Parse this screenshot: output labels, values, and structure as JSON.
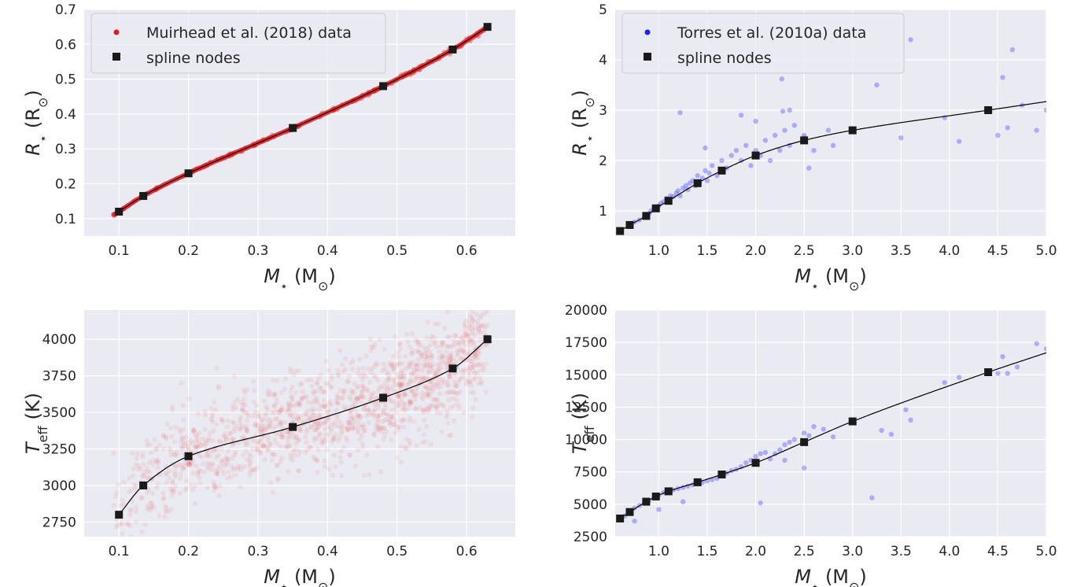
{
  "style": {
    "panel_bg": "#eaeaf2",
    "grid_color": "#ffffff",
    "text_color": "#262626",
    "red": "#e31a1c",
    "blue": "#1f1fff",
    "node_color": "#1a1a1a",
    "curve_color": "#000000"
  },
  "chart_data": [
    {
      "id": "top-left",
      "type": "scatter",
      "xlabel": {
        "main": "M",
        "sub": "⋆",
        "unit": "(M",
        "unit_sub": "⊙",
        "close": ")"
      },
      "ylabel": {
        "main": "R",
        "sub": "⋆",
        "unit": "(R",
        "unit_sub": "⊙",
        "close": ")"
      },
      "xlim": [
        0.05,
        0.67
      ],
      "ylim": [
        0.05,
        0.7
      ],
      "xticks": [
        0.1,
        0.2,
        0.3,
        0.4,
        0.5,
        0.6
      ],
      "xtick_labels": [
        "0.1",
        "0.2",
        "0.3",
        "0.4",
        "0.5",
        "0.6"
      ],
      "yticks": [
        0.1,
        0.2,
        0.3,
        0.4,
        0.5,
        0.6,
        0.7
      ],
      "ytick_labels": [
        "0.1",
        "0.2",
        "0.3",
        "0.4",
        "0.5",
        "0.6",
        "0.7"
      ],
      "legend": {
        "location": "upper-left",
        "items": [
          "Muirhead et al. (2018) data",
          "spline nodes"
        ]
      },
      "data_series": {
        "name": "Muirhead et al. (2018) data",
        "color": "red",
        "kind": "band",
        "x_range": [
          0.09,
          0.63
        ]
      },
      "spline_nodes": {
        "name": "spline nodes",
        "x": [
          0.1,
          0.135,
          0.2,
          0.35,
          0.48,
          0.58,
          0.63
        ],
        "y": [
          0.12,
          0.165,
          0.23,
          0.36,
          0.48,
          0.585,
          0.65
        ]
      }
    },
    {
      "id": "top-right",
      "type": "scatter",
      "xlabel": {
        "main": "M",
        "sub": "⋆",
        "unit": "(M",
        "unit_sub": "⊙",
        "close": ")"
      },
      "ylabel": {
        "main": "R",
        "sub": "⋆",
        "unit": "(R",
        "unit_sub": "⊙",
        "close": ")"
      },
      "xlim": [
        0.55,
        5.0
      ],
      "ylim": [
        0.5,
        5.0
      ],
      "xticks": [
        1.0,
        1.5,
        2.0,
        2.5,
        3.0,
        3.5,
        4.0,
        4.5,
        5.0
      ],
      "xtick_labels": [
        "1.0",
        "1.5",
        "2.0",
        "2.5",
        "3.0",
        "3.5",
        "4.0",
        "4.5",
        "5.0"
      ],
      "yticks": [
        1,
        2,
        3,
        4,
        5
      ],
      "ytick_labels": [
        "1",
        "2",
        "3",
        "4",
        "5"
      ],
      "legend": {
        "location": "upper-left",
        "items": [
          "Torres et al. (2010a) data",
          "spline nodes"
        ]
      },
      "data_series": {
        "name": "Torres et al. (2010a) data",
        "color": "blue",
        "kind": "points",
        "x": [
          0.7,
          0.75,
          0.8,
          0.85,
          0.9,
          0.92,
          0.95,
          0.98,
          1.0,
          1.02,
          1.05,
          1.08,
          1.1,
          1.12,
          1.15,
          1.18,
          1.2,
          1.22,
          1.25,
          1.28,
          1.3,
          1.32,
          1.35,
          1.38,
          1.4,
          1.42,
          1.45,
          1.48,
          1.5,
          1.52,
          1.55,
          1.6,
          1.65,
          1.7,
          1.75,
          1.8,
          1.85,
          1.9,
          1.95,
          2.0,
          2.05,
          2.1,
          2.15,
          2.2,
          2.25,
          2.3,
          2.35,
          2.4,
          2.5,
          2.55,
          2.6,
          2.75,
          2.8,
          3.25,
          3.5,
          3.6,
          3.95,
          4.1,
          4.5,
          4.55,
          4.6,
          4.65,
          4.75,
          4.9,
          5.0,
          1.22,
          1.48,
          1.85,
          2.0,
          2.27,
          2.28,
          2.35,
          2.5
        ],
        "y": [
          0.7,
          0.78,
          0.82,
          0.88,
          0.95,
          1.0,
          1.05,
          1.08,
          1.1,
          1.15,
          1.18,
          1.25,
          1.22,
          1.3,
          1.28,
          1.35,
          1.4,
          1.3,
          1.45,
          1.5,
          1.42,
          1.55,
          1.6,
          1.5,
          1.7,
          1.55,
          1.65,
          1.8,
          1.6,
          1.75,
          1.9,
          1.7,
          2.0,
          1.85,
          2.1,
          2.2,
          2.0,
          2.3,
          1.9,
          2.2,
          2.1,
          2.4,
          2.0,
          2.5,
          2.2,
          2.6,
          2.3,
          2.7,
          2.5,
          1.85,
          2.2,
          2.6,
          2.3,
          3.5,
          2.45,
          4.4,
          2.85,
          2.38,
          2.5,
          3.65,
          2.65,
          4.2,
          3.1,
          2.6,
          3.0,
          2.95,
          2.25,
          2.9,
          2.78,
          3.62,
          2.98,
          3.0,
          2.45
        ]
      },
      "spline_nodes": {
        "name": "spline nodes",
        "x": [
          0.6,
          0.7,
          0.87,
          0.97,
          1.1,
          1.4,
          1.65,
          2.0,
          2.5,
          3.0,
          4.4
        ],
        "y": [
          0.6,
          0.72,
          0.9,
          1.05,
          1.2,
          1.55,
          1.8,
          2.1,
          2.4,
          2.6,
          3.0
        ]
      },
      "curve_extend_to": {
        "x": 5.0,
        "y": 3.17
      }
    },
    {
      "id": "bottom-left",
      "type": "scatter",
      "xlabel": {
        "main": "M",
        "sub": "⋆",
        "unit": "(M",
        "unit_sub": "⊙",
        "close": ")"
      },
      "ylabel": {
        "main": "T",
        "sub": "eff",
        "unit": "(K)",
        "unit_sub": "",
        "close": ""
      },
      "xlim": [
        0.05,
        0.67
      ],
      "ylim": [
        2650,
        4200
      ],
      "xticks": [
        0.1,
        0.2,
        0.3,
        0.4,
        0.5,
        0.6
      ],
      "xtick_labels": [
        "0.1",
        "0.2",
        "0.3",
        "0.4",
        "0.5",
        "0.6"
      ],
      "yticks": [
        2750,
        3000,
        3250,
        3500,
        3750,
        4000
      ],
      "ytick_labels": [
        "2750",
        "3000",
        "3250",
        "3500",
        "3750",
        "4000"
      ],
      "legend": null,
      "data_series": {
        "name": "Muirhead et al. (2018) data",
        "color": "red",
        "kind": "cloud",
        "x_range": [
          0.09,
          0.63
        ],
        "scatter_width_K": 170
      },
      "spline_nodes": {
        "name": "spline nodes",
        "x": [
          0.1,
          0.135,
          0.2,
          0.35,
          0.48,
          0.58,
          0.63
        ],
        "y": [
          2800,
          3000,
          3200,
          3400,
          3600,
          3800,
          4000
        ]
      }
    },
    {
      "id": "bottom-right",
      "type": "scatter",
      "xlabel": {
        "main": "M",
        "sub": "⋆",
        "unit": "(M",
        "unit_sub": "⊙",
        "close": ")"
      },
      "ylabel": {
        "main": "T",
        "sub": "eff",
        "unit": "(K)",
        "unit_sub": "",
        "close": ""
      },
      "xlim": [
        0.55,
        5.0
      ],
      "ylim": [
        2500,
        20000
      ],
      "xticks": [
        1.0,
        1.5,
        2.0,
        2.5,
        3.0,
        3.5,
        4.0,
        4.5,
        5.0
      ],
      "xtick_labels": [
        "1.0",
        "1.5",
        "2.0",
        "2.5",
        "3.0",
        "3.5",
        "4.0",
        "4.5",
        "5.0"
      ],
      "yticks": [
        2500,
        5000,
        7500,
        10000,
        12500,
        15000,
        17500,
        20000
      ],
      "ytick_labels": [
        "2500",
        "5000",
        "7500",
        "10000",
        "12500",
        "15000",
        "17500",
        "20000"
      ],
      "legend": null,
      "data_series": {
        "name": "Torres et al. (2010a) data",
        "color": "blue",
        "kind": "points",
        "x": [
          0.65,
          0.7,
          0.75,
          0.8,
          0.85,
          0.9,
          0.95,
          1.0,
          1.05,
          1.1,
          1.15,
          1.2,
          1.25,
          1.3,
          1.35,
          1.4,
          1.45,
          1.5,
          1.55,
          1.6,
          1.65,
          1.7,
          1.75,
          1.8,
          1.85,
          1.9,
          1.95,
          2.0,
          2.05,
          2.1,
          2.15,
          2.2,
          2.25,
          2.3,
          2.35,
          2.4,
          2.5,
          2.55,
          2.6,
          2.7,
          2.8,
          3.2,
          3.3,
          3.4,
          3.55,
          3.6,
          3.95,
          4.1,
          4.5,
          4.55,
          4.6,
          4.7,
          4.9,
          5.0,
          0.75,
          1.0,
          1.25,
          2.05,
          2.3,
          2.5
        ],
        "y": [
          4100,
          4300,
          4700,
          4900,
          5100,
          5300,
          5500,
          5700,
          5900,
          6000,
          6100,
          6200,
          6300,
          6400,
          6500,
          6600,
          6700,
          6800,
          6900,
          7000,
          7200,
          7400,
          7600,
          7700,
          7900,
          8200,
          8400,
          8700,
          8900,
          9000,
          8500,
          8900,
          9200,
          9600,
          9800,
          10000,
          10500,
          10300,
          11000,
          10800,
          10200,
          5500,
          10700,
          10400,
          12300,
          11500,
          14400,
          14800,
          15100,
          16400,
          15100,
          15600,
          17400,
          17000,
          3700,
          4600,
          5200,
          5100,
          8400,
          7800
        ]
      },
      "spline_nodes": {
        "name": "spline nodes",
        "x": [
          0.6,
          0.7,
          0.87,
          0.97,
          1.1,
          1.4,
          1.65,
          2.0,
          2.5,
          3.0,
          4.4
        ],
        "y": [
          3900,
          4400,
          5200,
          5600,
          6000,
          6700,
          7300,
          8200,
          9800,
          11400,
          15200
        ]
      },
      "curve_extend_to": {
        "x": 5.0,
        "y": 16700
      }
    }
  ]
}
